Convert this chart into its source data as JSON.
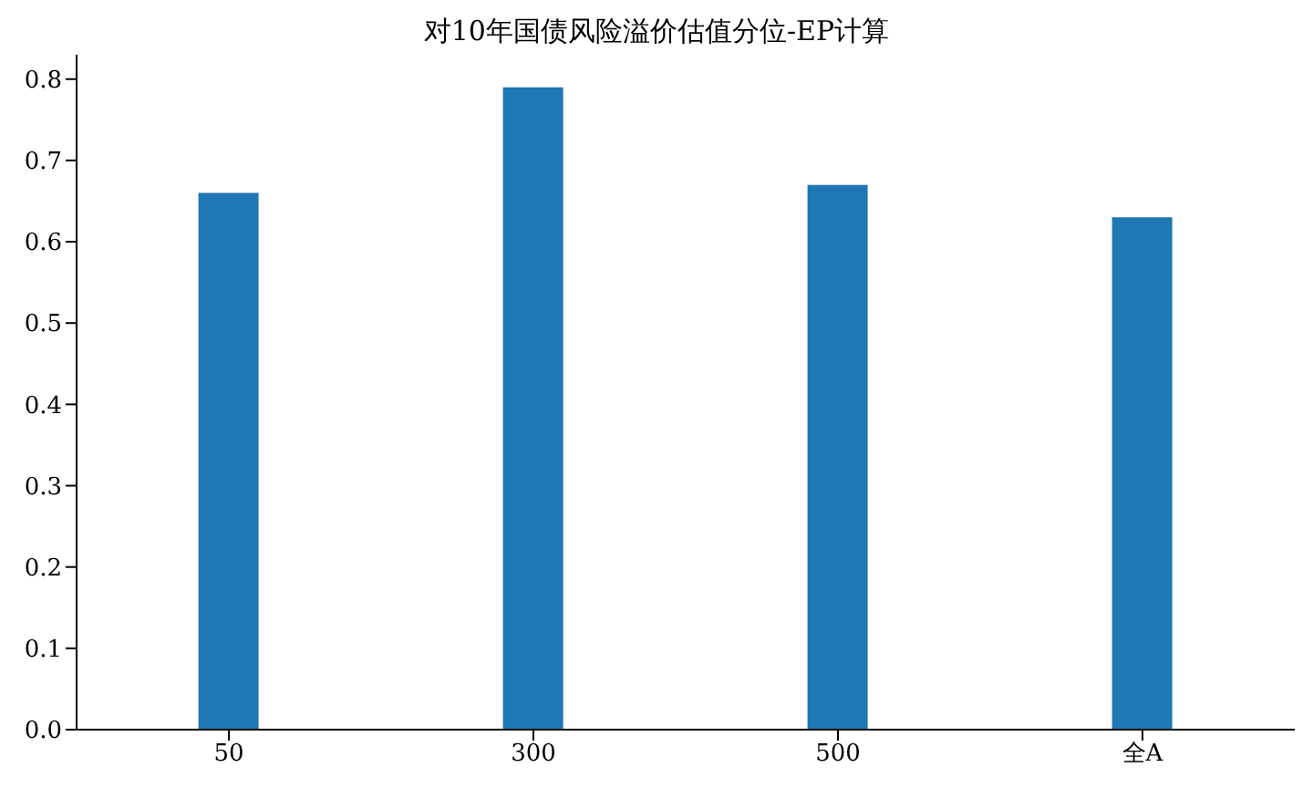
{
  "chart_data": {
    "type": "bar",
    "title": "对10年国债风险溢价估值分位-EP计算",
    "categories": [
      "50",
      "300",
      "500",
      "全A"
    ],
    "values": [
      0.66,
      0.79,
      0.67,
      0.63
    ],
    "color": "#1f77b4",
    "ylim": [
      0,
      0.83
    ],
    "yticks": [
      {
        "value": 0,
        "label": "0.0"
      },
      0.1,
      0.2,
      0.3,
      0.4,
      0.5,
      0.6,
      0.7,
      0.8
    ],
    "grid": false,
    "legend": false
  }
}
